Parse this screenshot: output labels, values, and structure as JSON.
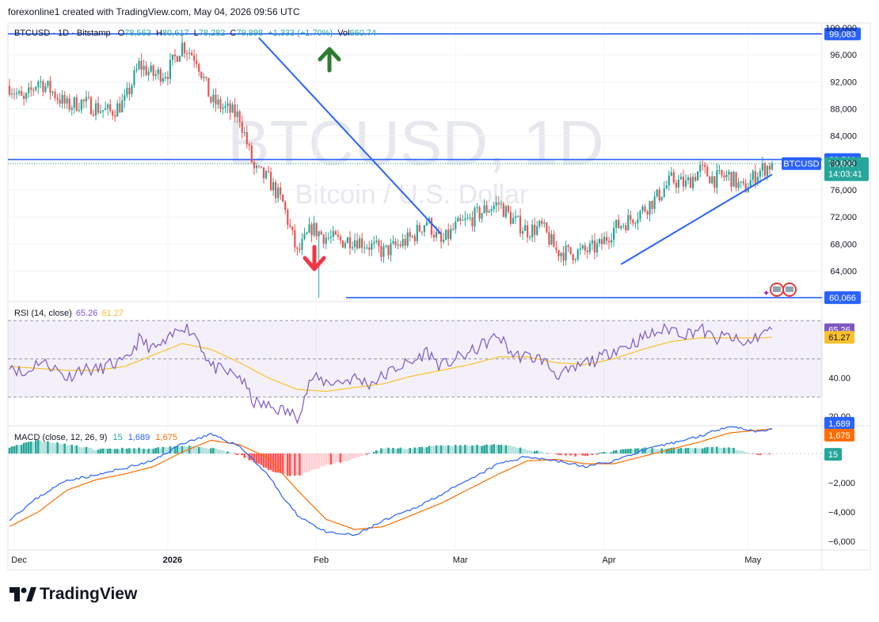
{
  "header": {
    "caption": "forexonline1 created with TradingView.com, May 04, 2026 09:56 UTC"
  },
  "legend": {
    "symbol": "BTCUSD · 1D · Bitstamp",
    "o_label": "O",
    "o_value": "78,563",
    "h_label": "H",
    "h_value": "80,617",
    "l_label": "L",
    "l_value": "78,282",
    "c_label": "C",
    "c_value": "79,898",
    "change": "+1,333 (+1.70%)",
    "vol_label": "Vol",
    "vol_value": "660.74"
  },
  "watermark": {
    "line1": "BTCUSD, 1D",
    "line2": "Bitcoin / U.S. Dollar"
  },
  "footer": {
    "brand": "TradingView"
  },
  "colors": {
    "up": "#26a69a",
    "down": "#ef5350",
    "line": "#2962ff",
    "rsi": "#7e57c2",
    "rsi_ma": "#fbc02d",
    "macd": "#2962ff",
    "signal": "#ff6d00"
  },
  "chart_data": [
    {
      "type": "candlestick",
      "name": "BTCUSD",
      "x_ticks": [
        "Dec",
        "2026",
        "Feb",
        "Mar",
        "Apr",
        "May"
      ],
      "y_ticks": [
        64000,
        68000,
        72000,
        76000,
        80000,
        84000,
        88000,
        92000,
        96000,
        100000
      ],
      "y_tick_labels": [
        "64,000",
        "68,000",
        "72,000",
        "76,000",
        "80,000",
        "84,000",
        "88,000",
        "92,000",
        "96,000",
        "100,000"
      ],
      "ylim": [
        59500,
        100700
      ],
      "last_price_label": "79,898",
      "countdown": "14:03:41",
      "symbol_tag": "BTCUSD",
      "levels": [
        {
          "value": 99083,
          "label": "99,083"
        },
        {
          "value": 80501,
          "label": "80,501"
        },
        {
          "value": 60066,
          "label": "60,066"
        }
      ],
      "trendlines": [
        {
          "from": [
            0,
            98500
          ],
          "to": [
            0,
            69500
          ]
        },
        {
          "from": [
            0,
            65000
          ],
          "to": [
            0,
            78300
          ]
        }
      ],
      "annotations": [
        "up-arrow",
        "down-arrow"
      ],
      "waypoints": [
        [
          0,
          91400
        ],
        [
          6,
          89000
        ],
        [
          12,
          92200
        ],
        [
          18,
          90500
        ],
        [
          24,
          88400
        ],
        [
          30,
          89000
        ],
        [
          36,
          88200
        ],
        [
          42,
          87500
        ],
        [
          48,
          89000
        ],
        [
          54,
          94500
        ],
        [
          60,
          93000
        ],
        [
          66,
          93500
        ],
        [
          72,
          97500
        ],
        [
          78,
          95500
        ],
        [
          84,
          89200
        ],
        [
          90,
          88000
        ],
        [
          96,
          86800
        ],
        [
          102,
          79000
        ],
        [
          108,
          77500
        ],
        [
          114,
          74000
        ],
        [
          120,
          66500
        ],
        [
          126,
          70400
        ],
        [
          132,
          69000
        ],
        [
          138,
          68400
        ],
        [
          144,
          68800
        ],
        [
          150,
          67800
        ],
        [
          156,
          66800
        ],
        [
          162,
          67800
        ],
        [
          168,
          69000
        ],
        [
          174,
          71500
        ],
        [
          180,
          68000
        ],
        [
          186,
          70500
        ],
        [
          192,
          71600
        ],
        [
          198,
          73000
        ],
        [
          204,
          74000
        ],
        [
          210,
          71500
        ],
        [
          216,
          70000
        ],
        [
          222,
          70500
        ],
        [
          228,
          67000
        ],
        [
          234,
          66600
        ],
        [
          240,
          66900
        ],
        [
          246,
          67700
        ],
        [
          252,
          70300
        ],
        [
          258,
          71500
        ],
        [
          264,
          73000
        ],
        [
          270,
          74900
        ],
        [
          276,
          77500
        ],
        [
          282,
          76800
        ],
        [
          288,
          79000
        ],
        [
          294,
          77600
        ],
        [
          300,
          78100
        ],
        [
          306,
          76000
        ],
        [
          312,
          78600
        ],
        [
          318,
          79898
        ]
      ]
    },
    {
      "type": "line",
      "name": "RSI",
      "legend": "RSI (14, close)",
      "value_label": "65.26",
      "ma_value_label": "61.27",
      "ylim": [
        15,
        80
      ],
      "band": [
        30,
        70
      ],
      "mid": 50,
      "y_ticks": [
        20,
        40
      ],
      "y_tick_labels": [
        "20.00",
        "40.00"
      ],
      "series": [
        {
          "name": "RSI",
          "waypoints": [
            [
              0,
              48
            ],
            [
              6,
              41
            ],
            [
              12,
              49
            ],
            [
              18,
              46
            ],
            [
              24,
              40
            ],
            [
              30,
              45
            ],
            [
              36,
              44
            ],
            [
              42,
              47
            ],
            [
              48,
              48
            ],
            [
              54,
              60
            ],
            [
              60,
              55
            ],
            [
              66,
              59
            ],
            [
              72,
              68
            ],
            [
              78,
              62
            ],
            [
              84,
              46
            ],
            [
              90,
              43
            ],
            [
              96,
              41
            ],
            [
              102,
              27
            ],
            [
              108,
              25
            ],
            [
              114,
              23
            ],
            [
              120,
              20
            ],
            [
              126,
              40
            ],
            [
              132,
              38
            ],
            [
              138,
              38
            ],
            [
              144,
              40
            ],
            [
              150,
              37
            ],
            [
              156,
              41
            ],
            [
              162,
              46
            ],
            [
              168,
              48
            ],
            [
              174,
              54
            ],
            [
              180,
              46
            ],
            [
              186,
              50
            ],
            [
              192,
              53
            ],
            [
              198,
              58
            ],
            [
              204,
              62
            ],
            [
              210,
              52
            ],
            [
              216,
              51
            ],
            [
              222,
              50
            ],
            [
              228,
              42
            ],
            [
              234,
              43
            ],
            [
              240,
              48
            ],
            [
              246,
              50
            ],
            [
              252,
              55
            ],
            [
              258,
              57
            ],
            [
              264,
              61
            ],
            [
              270,
              64
            ],
            [
              276,
              66
            ],
            [
              282,
              63
            ],
            [
              288,
              66
            ],
            [
              294,
              60
            ],
            [
              300,
              62
            ],
            [
              306,
              57
            ],
            [
              312,
              62
            ],
            [
              318,
              65.26
            ]
          ]
        },
        {
          "name": "RSI MA",
          "waypoints": [
            [
              0,
              46
            ],
            [
              12,
              45
            ],
            [
              24,
              44
            ],
            [
              36,
              44
            ],
            [
              48,
              46
            ],
            [
              60,
              52
            ],
            [
              72,
              58
            ],
            [
              84,
              55
            ],
            [
              96,
              48
            ],
            [
              108,
              40
            ],
            [
              120,
              34
            ],
            [
              132,
              33
            ],
            [
              144,
              35
            ],
            [
              156,
              37
            ],
            [
              168,
              41
            ],
            [
              180,
              44
            ],
            [
              192,
              47
            ],
            [
              204,
              51
            ],
            [
              216,
              51
            ],
            [
              228,
              48
            ],
            [
              240,
              47
            ],
            [
              252,
              50
            ],
            [
              264,
              55
            ],
            [
              276,
              59
            ],
            [
              288,
              61
            ],
            [
              300,
              61
            ],
            [
              312,
              61
            ],
            [
              318,
              61.27
            ]
          ]
        }
      ]
    },
    {
      "type": "line",
      "name": "MACD",
      "legend": "MACD (close, 12, 26, 9)",
      "legend_hist": "15",
      "legend_macd": "1,689",
      "legend_signal": "1,675",
      "macd_label": "1,689",
      "signal_label": "1,675",
      "hist_label": "15",
      "ylim": [
        -6600,
        1900
      ],
      "y_ticks": [
        -2000,
        -4000,
        -6000
      ],
      "y_tick_labels": [
        "−2,000",
        "−4,000",
        "−6,000"
      ],
      "series": [
        {
          "name": "MACD",
          "waypoints": [
            [
              0,
              -4500
            ],
            [
              12,
              -3000
            ],
            [
              24,
              -1800
            ],
            [
              36,
              -1500
            ],
            [
              48,
              -1000
            ],
            [
              60,
              -500
            ],
            [
              72,
              700
            ],
            [
              84,
              1300
            ],
            [
              96,
              500
            ],
            [
              102,
              -500
            ],
            [
              108,
              -1500
            ],
            [
              114,
              -3000
            ],
            [
              120,
              -4200
            ],
            [
              132,
              -5400
            ],
            [
              144,
              -5600
            ],
            [
              156,
              -4600
            ],
            [
              168,
              -3800
            ],
            [
              180,
              -2800
            ],
            [
              192,
              -1800
            ],
            [
              204,
              -700
            ],
            [
              216,
              -200
            ],
            [
              228,
              -500
            ],
            [
              240,
              -900
            ],
            [
              252,
              -500
            ],
            [
              264,
              200
            ],
            [
              276,
              700
            ],
            [
              288,
              1200
            ],
            [
              300,
              1900
            ],
            [
              306,
              1700
            ],
            [
              312,
              1500
            ],
            [
              318,
              1689
            ]
          ]
        },
        {
          "name": "Signal",
          "waypoints": [
            [
              0,
              -5000
            ],
            [
              12,
              -4000
            ],
            [
              24,
              -2500
            ],
            [
              36,
              -1800
            ],
            [
              48,
              -1400
            ],
            [
              60,
              -900
            ],
            [
              72,
              100
            ],
            [
              84,
              900
            ],
            [
              96,
              600
            ],
            [
              108,
              -300
            ],
            [
              120,
              -2500
            ],
            [
              132,
              -4500
            ],
            [
              144,
              -5200
            ],
            [
              156,
              -5000
            ],
            [
              168,
              -4200
            ],
            [
              180,
              -3400
            ],
            [
              192,
              -2400
            ],
            [
              204,
              -1400
            ],
            [
              216,
              -500
            ],
            [
              228,
              -400
            ],
            [
              240,
              -700
            ],
            [
              252,
              -700
            ],
            [
              264,
              -200
            ],
            [
              276,
              300
            ],
            [
              288,
              800
            ],
            [
              300,
              1400
            ],
            [
              312,
              1600
            ],
            [
              318,
              1675
            ]
          ]
        }
      ]
    }
  ]
}
